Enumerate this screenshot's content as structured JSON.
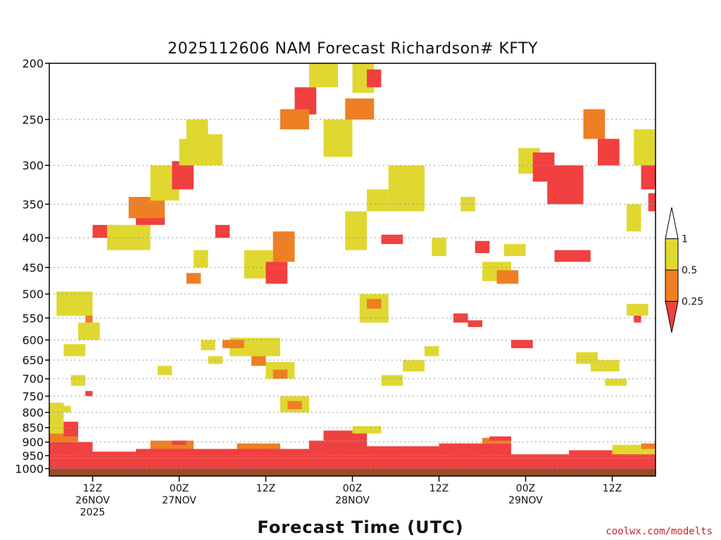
{
  "chart_data": {
    "type": "heatmap",
    "title": "2025112606 NAM Forecast Richardson# KFTY",
    "xlabel": "Forecast Time (UTC)",
    "ylabel": "Pressure (hPa)",
    "credit": "coolwx.com/modelts",
    "y_axis": {
      "scale": "log-pressure",
      "range": [
        1030,
        200
      ],
      "ticks": [
        200,
        250,
        300,
        350,
        400,
        450,
        500,
        550,
        600,
        650,
        700,
        750,
        800,
        850,
        900,
        950,
        1000
      ],
      "tick_labels": [
        "200",
        "250",
        "300",
        "350",
        "400",
        "450",
        "500",
        "550",
        "600",
        "650",
        "700",
        "750",
        "800",
        "850",
        "900",
        "950",
        "1000"
      ]
    },
    "x_axis": {
      "unit": "hours since 2025-11-26 06Z",
      "range": [
        0,
        84
      ],
      "ticks": [
        {
          "hour": 6,
          "lines": [
            "12Z",
            "26NOV",
            "2025"
          ]
        },
        {
          "hour": 18,
          "lines": [
            "00Z",
            "27NOV"
          ]
        },
        {
          "hour": 30,
          "lines": [
            "12Z"
          ]
        },
        {
          "hour": 42,
          "lines": [
            "00Z",
            "28NOV"
          ]
        },
        {
          "hour": 54,
          "lines": [
            "12Z"
          ]
        },
        {
          "hour": 66,
          "lines": [
            "00Z",
            "29NOV"
          ]
        },
        {
          "hour": 78,
          "lines": [
            "12Z"
          ]
        }
      ]
    },
    "legend": {
      "placement": "right",
      "levels": [
        {
          "label": "1",
          "color": "#ffffff"
        },
        {
          "label": "0.5",
          "color": "#e0d830"
        },
        {
          "label": "0.25",
          "color": "#ee7f22"
        },
        {
          "label": "",
          "color": "#f04040"
        }
      ]
    },
    "colors": {
      "low_ri": "#f04040",
      "mid_ri": "#ee7f22",
      "high_ri": "#e0d830",
      "ground": "#9b4a2a"
    },
    "ground_pressure": 1000,
    "categories_note": "cells: [hour_start, hour_end, p_top, p_bottom, class] ; class 1 = Ri<0.25, 2 = 0.25-0.5, 3 = 0.5-1",
    "cells": [
      [
        0,
        84,
        960,
        1000,
        1
      ],
      [
        0,
        6,
        900,
        960,
        1
      ],
      [
        6,
        12,
        935,
        960,
        1
      ],
      [
        12,
        18,
        925,
        960,
        1
      ],
      [
        18,
        30,
        925,
        960,
        1
      ],
      [
        30,
        36,
        925,
        960,
        1
      ],
      [
        36,
        44,
        895,
        960,
        1
      ],
      [
        44,
        54,
        915,
        960,
        1
      ],
      [
        54,
        64,
        905,
        960,
        1
      ],
      [
        64,
        72,
        945,
        960,
        1
      ],
      [
        72,
        84,
        930,
        960,
        1
      ],
      [
        0,
        4,
        870,
        900,
        2
      ],
      [
        0,
        2,
        770,
        870,
        3
      ],
      [
        2,
        4,
        830,
        880,
        1
      ],
      [
        14,
        20,
        895,
        925,
        2
      ],
      [
        17,
        19,
        895,
        910,
        1
      ],
      [
        26,
        32,
        905,
        925,
        2
      ],
      [
        38,
        44,
        860,
        895,
        1
      ],
      [
        42,
        46,
        845,
        870,
        3
      ],
      [
        60,
        64,
        885,
        905,
        2
      ],
      [
        61,
        64,
        880,
        895,
        1
      ],
      [
        78,
        84,
        910,
        945,
        3
      ],
      [
        82,
        84,
        905,
        925,
        2
      ],
      [
        4,
        7,
        560,
        600,
        3
      ],
      [
        1,
        6,
        495,
        545,
        3
      ],
      [
        5,
        6,
        545,
        560,
        2
      ],
      [
        6,
        9,
        380,
        400,
        1
      ],
      [
        8,
        14,
        380,
        420,
        3
      ],
      [
        12,
        16,
        355,
        380,
        1
      ],
      [
        11,
        16,
        340,
        370,
        2
      ],
      [
        14,
        18,
        300,
        345,
        3
      ],
      [
        17,
        20,
        295,
        330,
        1
      ],
      [
        18,
        22,
        270,
        300,
        3
      ],
      [
        19,
        22,
        250,
        270,
        3
      ],
      [
        21,
        24,
        265,
        300,
        3
      ],
      [
        25,
        32,
        595,
        640,
        3
      ],
      [
        24,
        27,
        600,
        620,
        2
      ],
      [
        28,
        30,
        640,
        665,
        2
      ],
      [
        30,
        34,
        655,
        700,
        3
      ],
      [
        31,
        33,
        675,
        700,
        2
      ],
      [
        32,
        36,
        750,
        800,
        3
      ],
      [
        33,
        35,
        765,
        790,
        2
      ],
      [
        27,
        32,
        420,
        470,
        3
      ],
      [
        30,
        33,
        440,
        480,
        1
      ],
      [
        31,
        34,
        390,
        440,
        2
      ],
      [
        34,
        37,
        220,
        245,
        1
      ],
      [
        32,
        36,
        240,
        260,
        2
      ],
      [
        36,
        40,
        200,
        220,
        3
      ],
      [
        38,
        42,
        250,
        290,
        3
      ],
      [
        41,
        45,
        230,
        250,
        2
      ],
      [
        42,
        45,
        200,
        225,
        3
      ],
      [
        44,
        46,
        205,
        220,
        1
      ],
      [
        41,
        44,
        360,
        420,
        3
      ],
      [
        43,
        47,
        500,
        560,
        3
      ],
      [
        44,
        46,
        510,
        530,
        2
      ],
      [
        46,
        49,
        395,
        410,
        1
      ],
      [
        44,
        47,
        330,
        360,
        3
      ],
      [
        47,
        52,
        300,
        360,
        3
      ],
      [
        53,
        55,
        400,
        430,
        3
      ],
      [
        56,
        58,
        540,
        560,
        1
      ],
      [
        58,
        60,
        555,
        570,
        1
      ],
      [
        57,
        59,
        340,
        360,
        3
      ],
      [
        59,
        61,
        405,
        425,
        1
      ],
      [
        60,
        64,
        440,
        475,
        3
      ],
      [
        62,
        65,
        455,
        480,
        2
      ],
      [
        64,
        67,
        600,
        620,
        1
      ],
      [
        63,
        66,
        410,
        430,
        3
      ],
      [
        65,
        68,
        280,
        310,
        3
      ],
      [
        67,
        70,
        285,
        320,
        1
      ],
      [
        69,
        74,
        300,
        350,
        1
      ],
      [
        70,
        75,
        420,
        440,
        1
      ],
      [
        71,
        73,
        300,
        330,
        1
      ],
      [
        73,
        76,
        630,
        660,
        3
      ],
      [
        75,
        79,
        650,
        680,
        3
      ],
      [
        77,
        80,
        700,
        720,
        3
      ],
      [
        80,
        82,
        350,
        390,
        3
      ],
      [
        81,
        84,
        260,
        300,
        3
      ],
      [
        82,
        84,
        300,
        330,
        1
      ],
      [
        83,
        84,
        335,
        360,
        1
      ],
      [
        80,
        83,
        520,
        545,
        3
      ],
      [
        81,
        82,
        545,
        560,
        1
      ],
      [
        74,
        77,
        240,
        270,
        2
      ],
      [
        76,
        79,
        270,
        300,
        1
      ],
      [
        38,
        40,
        160,
        170,
        1
      ],
      [
        2,
        5,
        610,
        640,
        3
      ],
      [
        3,
        5,
        690,
        720,
        3
      ],
      [
        5,
        6,
        735,
        750,
        1
      ],
      [
        1,
        3,
        780,
        800,
        3
      ],
      [
        15,
        17,
        665,
        690,
        3
      ],
      [
        21,
        23,
        600,
        625,
        3
      ],
      [
        22,
        24,
        640,
        660,
        3
      ],
      [
        23,
        25,
        380,
        400,
        1
      ],
      [
        20,
        22,
        420,
        450,
        3
      ],
      [
        19,
        21,
        460,
        480,
        2
      ],
      [
        52,
        54,
        615,
        640,
        3
      ],
      [
        49,
        52,
        650,
        680,
        3
      ],
      [
        46,
        49,
        690,
        720,
        3
      ]
    ]
  }
}
